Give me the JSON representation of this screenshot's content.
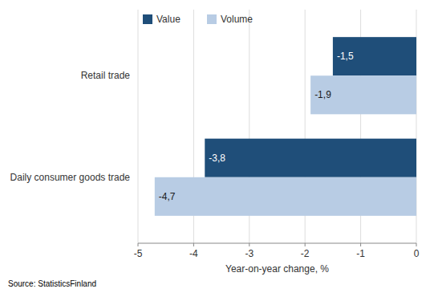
{
  "chart_data": {
    "type": "bar",
    "orientation": "horizontal",
    "categories": [
      "Daily consumer goods trade",
      "Retail trade"
    ],
    "series": [
      {
        "name": "Value",
        "color": "#1F4E79",
        "values": [
          -3.8,
          -1.5
        ],
        "value_labels": [
          "-3,8",
          "-1,5"
        ]
      },
      {
        "name": "Volume",
        "color": "#B8CCE4",
        "values": [
          -4.7,
          -1.9
        ],
        "value_labels": [
          "-4,7",
          "-1,9"
        ]
      }
    ],
    "xlabel": "Year-on-year change, %",
    "xlim": [
      -5,
      0
    ],
    "xticks": [
      -5,
      -4,
      -3,
      -2,
      -1,
      0
    ],
    "grid": true,
    "legend": "upper left",
    "data_labels": true,
    "source": "Source: StatisticsFinland"
  }
}
